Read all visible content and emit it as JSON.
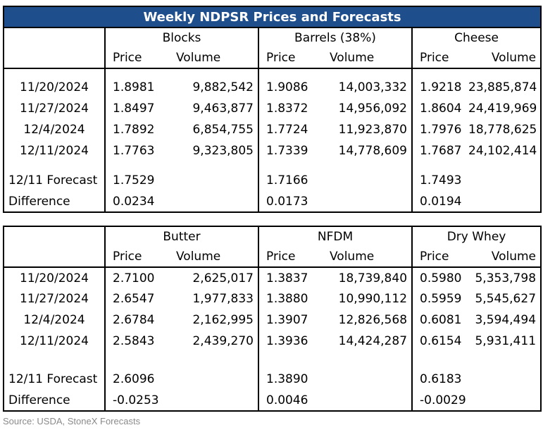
{
  "table1": {
    "title": "Weekly NDPSR Prices and Forecasts",
    "groups": [
      "Blocks",
      "Barrels (38%)",
      "Cheese"
    ],
    "subheaders": [
      "Price",
      "Volume",
      "Price",
      "Volume",
      "Price",
      "Volume"
    ],
    "rows": [
      {
        "date": "11/20/2024",
        "v": [
          "1.8981",
          "9,882,542",
          "1.9086",
          "14,003,332",
          "1.9218",
          "23,885,874"
        ]
      },
      {
        "date": "11/27/2024",
        "v": [
          "1.8497",
          "9,463,877",
          "1.8372",
          "14,956,092",
          "1.8604",
          "24,419,969"
        ]
      },
      {
        "date": "12/4/2024",
        "v": [
          "1.7892",
          "6,854,755",
          "1.7724",
          "11,923,870",
          "1.7976",
          "18,778,625"
        ]
      },
      {
        "date": "12/11/2024",
        "v": [
          "1.7763",
          "9,323,805",
          "1.7339",
          "14,778,609",
          "1.7687",
          "24,102,414"
        ]
      }
    ],
    "forecast": {
      "label": "12/11 Forecast",
      "v": [
        "1.7529",
        "1.7166",
        "1.7493"
      ]
    },
    "difference": {
      "label": "Difference",
      "v": [
        "0.0234",
        "0.0173",
        "0.0194"
      ]
    }
  },
  "table2": {
    "groups": [
      "Butter",
      "NFDM",
      "Dry Whey"
    ],
    "subheaders": [
      "Price",
      "Volume",
      "Price",
      "Volume",
      "Price",
      "Volume"
    ],
    "rows": [
      {
        "date": "11/20/2024",
        "v": [
          "2.7100",
          "2,625,017",
          "1.3837",
          "18,739,840",
          "0.5980",
          "5,353,798"
        ]
      },
      {
        "date": "11/27/2024",
        "v": [
          "2.6547",
          "1,977,833",
          "1.3880",
          "10,990,112",
          "0.5959",
          "5,545,627"
        ]
      },
      {
        "date": "12/4/2024",
        "v": [
          "2.6784",
          "2,162,995",
          "1.3907",
          "12,826,568",
          "0.6081",
          "3,594,494"
        ]
      },
      {
        "date": "12/11/2024",
        "v": [
          "2.5843",
          "2,439,270",
          "1.3936",
          "14,424,287",
          "0.6154",
          "5,931,411"
        ]
      }
    ],
    "forecast": {
      "label": "12/11 Forecast",
      "v": [
        "2.6096",
        "1.3890",
        "0.6183"
      ]
    },
    "difference": {
      "label": "Difference",
      "v": [
        "-0.0253",
        "0.0046",
        "-0.0029"
      ]
    }
  },
  "source": "Source: USDA, StoneX Forecasts"
}
